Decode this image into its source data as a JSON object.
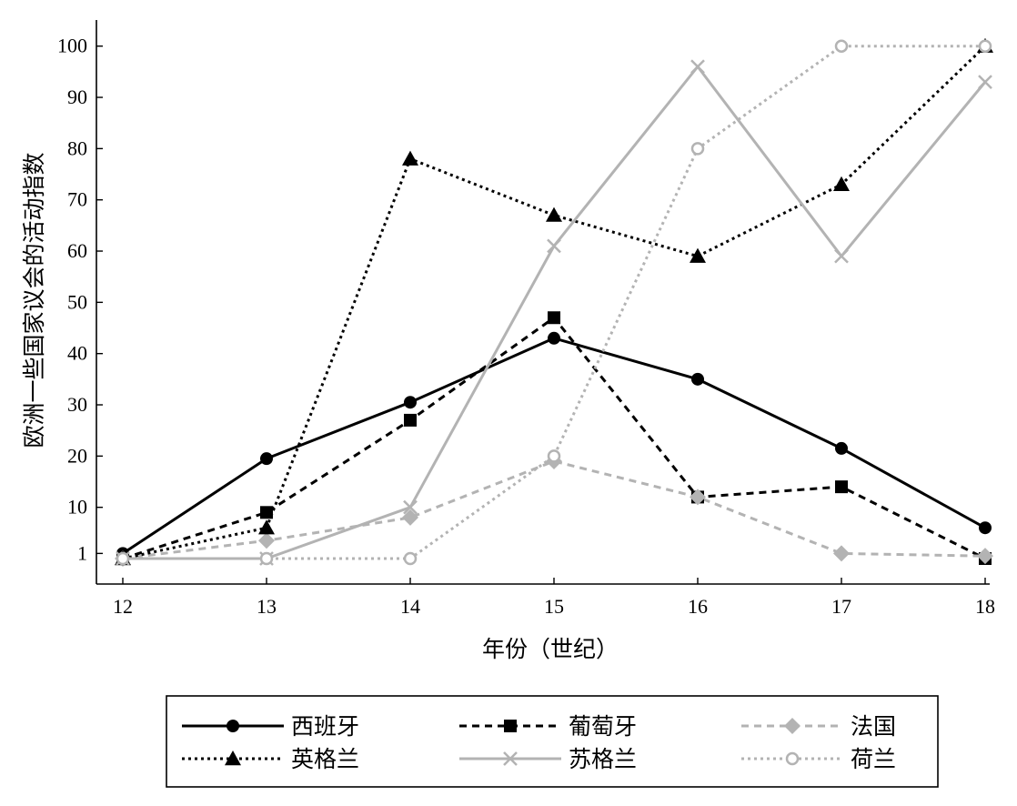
{
  "chart_data": {
    "type": "line",
    "title": "",
    "xlabel": "年份（世纪）",
    "ylabel": "欧洲一些国家议会的活动指数",
    "x": [
      12,
      13,
      14,
      15,
      16,
      17,
      18
    ],
    "xlim": [
      12,
      18
    ],
    "ylim": [
      0,
      102
    ],
    "yticks": [
      1,
      10,
      20,
      30,
      40,
      50,
      60,
      70,
      80,
      90,
      100
    ],
    "grid": false,
    "legend_position": "bottom",
    "series": [
      {
        "name": "西班牙",
        "color": "#000000",
        "dash": "solid",
        "marker": "circle",
        "values": [
          1,
          19.5,
          30.5,
          43,
          35,
          21.5,
          6
        ]
      },
      {
        "name": "葡萄牙",
        "color": "#000000",
        "dash": "dashed",
        "marker": "square",
        "values": [
          0,
          9,
          27,
          47,
          12,
          14,
          0
        ]
      },
      {
        "name": "法国",
        "color": "#b3b3b3",
        "dash": "dashed",
        "marker": "diamond",
        "values": [
          0,
          3.5,
          8,
          19,
          12,
          1,
          0.5
        ]
      },
      {
        "name": "英格兰",
        "color": "#000000",
        "dash": "dotted",
        "marker": "triangle",
        "values": [
          0,
          6,
          78,
          67,
          59,
          73,
          100
        ]
      },
      {
        "name": "苏格兰",
        "color": "#b3b3b3",
        "dash": "solid",
        "marker": "x",
        "values": [
          0,
          0,
          10,
          61,
          96,
          59,
          93
        ]
      },
      {
        "name": "荷兰",
        "color": "#b3b3b3",
        "dash": "dotted",
        "marker": "open-circle",
        "values": [
          0,
          0,
          0,
          20,
          80,
          100,
          100
        ]
      }
    ]
  }
}
